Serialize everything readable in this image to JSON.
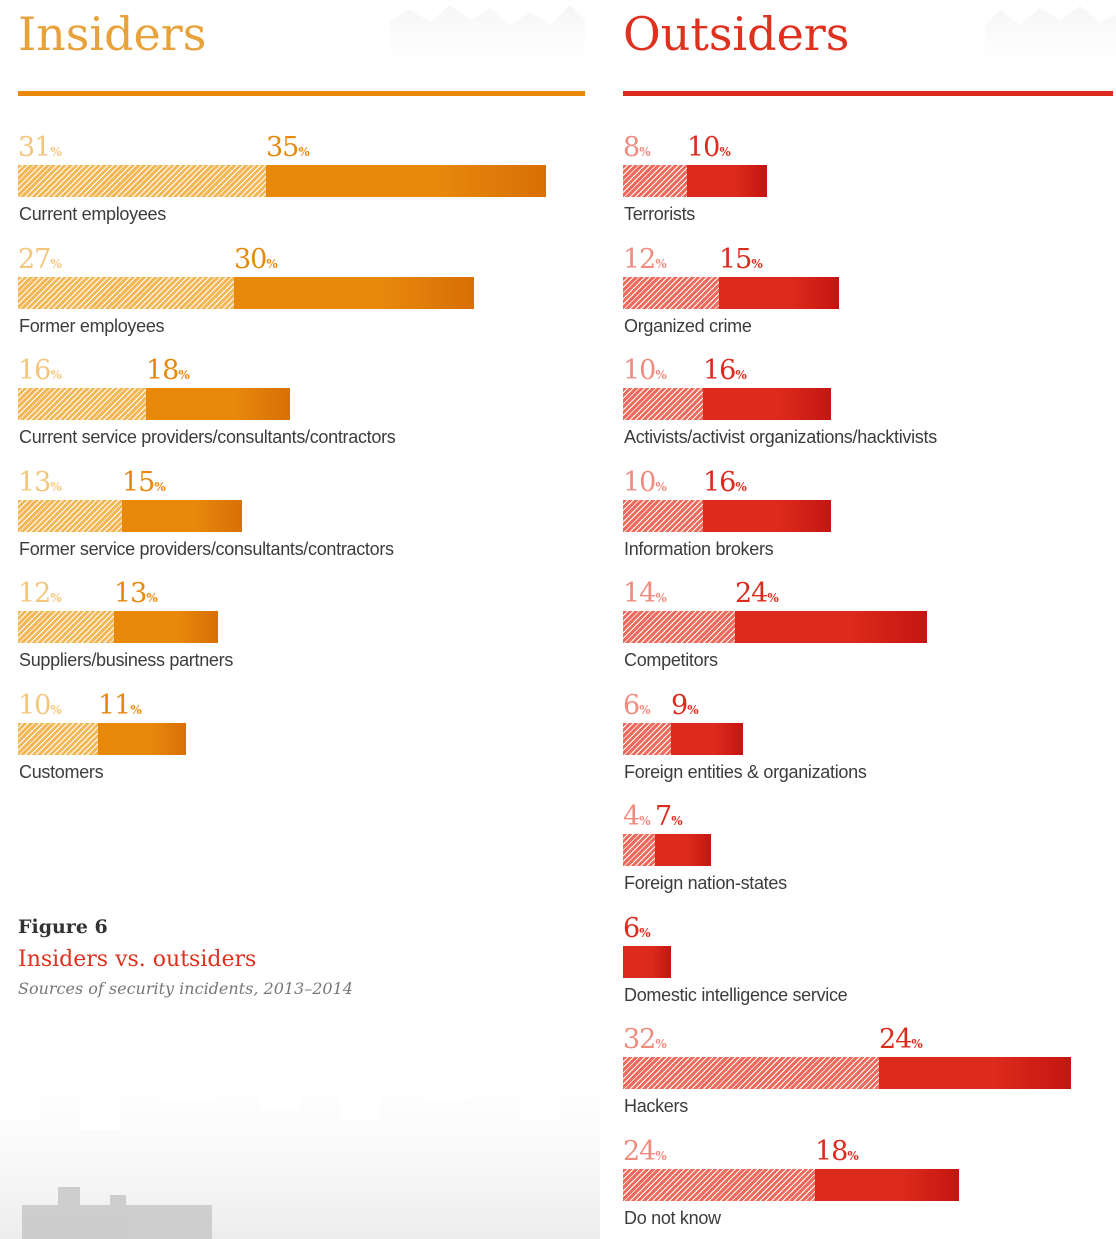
{
  "colors": {
    "insiders_light": "#f2b757",
    "insiders_dark": "#e8890c",
    "insiders_title": "#e8a23a",
    "outsiders_light": "#ec6b5c",
    "outsiders_dark": "#dc2a1c",
    "outsiders_title": "#e0301e"
  },
  "caption": {
    "figure": "Figure 6",
    "title": "Insiders vs. outsiders",
    "subtitle": "Sources of security incidents, 2013–2014"
  },
  "chart_data": [
    {
      "type": "bar",
      "title": "Insiders",
      "value_unit": "%",
      "stacked": true,
      "categories": [
        "Current employees",
        "Former employees",
        "Current service providers/consultants/contractors",
        "Former service providers/consultants/contractors",
        "Suppliers/business partners",
        "Customers"
      ],
      "series": [
        {
          "values": [
            31,
            27,
            16,
            13,
            12,
            10
          ]
        },
        {
          "values": [
            35,
            30,
            18,
            15,
            13,
            11
          ]
        }
      ]
    },
    {
      "type": "bar",
      "title": "Outsiders",
      "value_unit": "%",
      "stacked": true,
      "categories": [
        "Terrorists",
        "Organized crime",
        "Activists/activist organizations/hacktivists",
        "Information brokers",
        "Competitors",
        "Foreign entities & organizations",
        "Foreign nation-states",
        "Domestic intelligence service",
        "Hackers",
        "Do not know"
      ],
      "series": [
        {
          "values": [
            8,
            12,
            10,
            10,
            14,
            6,
            4,
            null,
            32,
            24
          ]
        },
        {
          "values": [
            10,
            15,
            16,
            16,
            24,
            9,
            7,
            6,
            24,
            18
          ]
        }
      ]
    }
  ]
}
